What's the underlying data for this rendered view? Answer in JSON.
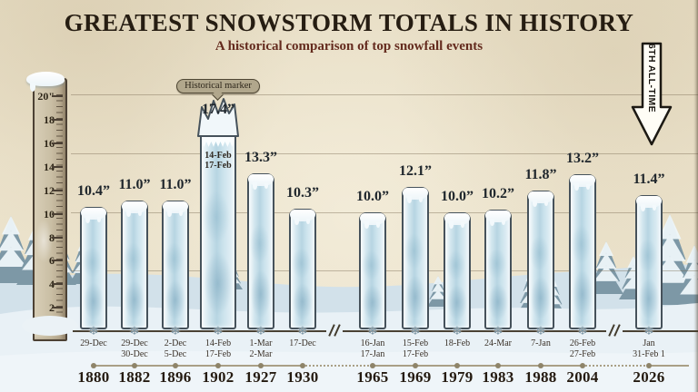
{
  "title": "GREATEST SNOWSTORM TOTALS IN HISTORY",
  "subtitle": "A historical comparison of top snowfall events",
  "annotations": {
    "historical_marker": "Historical marker",
    "all_time_arrow": "6TH ALL-TIME"
  },
  "icons": {
    "snowflake": "❄"
  },
  "colors": {
    "parchment": "#e9e0c9",
    "title_text": "#261d12",
    "subtitle_text": "#642b1e",
    "ice_outline": "#46525b",
    "ice_fill": "#cde3ed",
    "snow": "#e9f1f6",
    "tree": "#7d98a6",
    "year_text": "#241a10",
    "date_text": "#3a3128"
  },
  "ruler": {
    "ticks": [
      {
        "label": "20\"",
        "value": 20
      },
      {
        "label": "18",
        "value": 18
      },
      {
        "label": "16",
        "value": 16
      },
      {
        "label": "14",
        "value": 14
      },
      {
        "label": "12",
        "value": 12
      },
      {
        "label": "10",
        "value": 10
      },
      {
        "label": "8",
        "value": 8
      },
      {
        "label": "6",
        "value": 6
      },
      {
        "label": "4",
        "value": 4
      },
      {
        "label": "2",
        "value": 2
      }
    ]
  },
  "chart_data": {
    "type": "bar",
    "title": "GREATEST SNOWSTORM TOTALS IN HISTORY",
    "subtitle": "A historical comparison of top snowfall events",
    "unit": "inches",
    "ylim": [
      0,
      20
    ],
    "gridlines_at": [
      5,
      10,
      15,
      20
    ],
    "legend": "none",
    "categories": [
      "1880",
      "1882",
      "1896",
      "1902",
      "1927",
      "1930",
      "1965",
      "1969",
      "1979",
      "1983",
      "1988",
      "2004",
      "2026"
    ],
    "values": [
      10.4,
      11.0,
      11.0,
      17.4,
      13.3,
      10.3,
      10.0,
      12.1,
      10.0,
      10.2,
      11.8,
      13.2,
      11.4
    ],
    "bars": [
      {
        "year": "1880",
        "value": 10.4,
        "value_label": "10.4”",
        "date_lines": [
          "29-Dec"
        ]
      },
      {
        "year": "1882",
        "value": 11.0,
        "value_label": "11.0”",
        "date_lines": [
          "29-Dec",
          "30-Dec"
        ]
      },
      {
        "year": "1896",
        "value": 11.0,
        "value_label": "11.0”",
        "date_lines": [
          "2-Dec",
          "5-Dec"
        ]
      },
      {
        "year": "1902",
        "value": 17.4,
        "value_label": "17.4”",
        "date_lines": [
          "14-Feb",
          "17-Feb"
        ],
        "highlight": true,
        "on_bar_date_lines": [
          "14-Feb",
          "17-Feb"
        ],
        "marker": "Historical marker"
      },
      {
        "year": "1927",
        "value": 13.3,
        "value_label": "13.3”",
        "date_lines": [
          "1-Mar",
          "2-Mar"
        ]
      },
      {
        "year": "1930",
        "value": 10.3,
        "value_label": "10.3”",
        "date_lines": [
          "17-Dec"
        ]
      },
      {
        "year": "1965",
        "value": 10.0,
        "value_label": "10.0”",
        "date_lines": [
          "16-Jan",
          "17-Jan"
        ]
      },
      {
        "year": "1969",
        "value": 12.1,
        "value_label": "12.1”",
        "date_lines": [
          "15-Feb",
          "17-Feb"
        ]
      },
      {
        "year": "1979",
        "value": 10.0,
        "value_label": "10.0”",
        "date_lines": [
          "18-Feb"
        ]
      },
      {
        "year": "1983",
        "value": 10.2,
        "value_label": "10.2”",
        "date_lines": [
          "24-Mar"
        ]
      },
      {
        "year": "1988",
        "value": 11.8,
        "value_label": "11.8”",
        "date_lines": [
          "7-Jan"
        ]
      },
      {
        "year": "2004",
        "value": 13.2,
        "value_label": "13.2”",
        "date_lines": [
          "26-Feb",
          "27-Feb"
        ]
      },
      {
        "year": "2026",
        "value": 11.4,
        "value_label": "11.4”",
        "date_lines": [
          "Jan",
          "31-Feb 1"
        ]
      }
    ],
    "timeline_breaks_after_index": [
      5,
      11
    ]
  }
}
